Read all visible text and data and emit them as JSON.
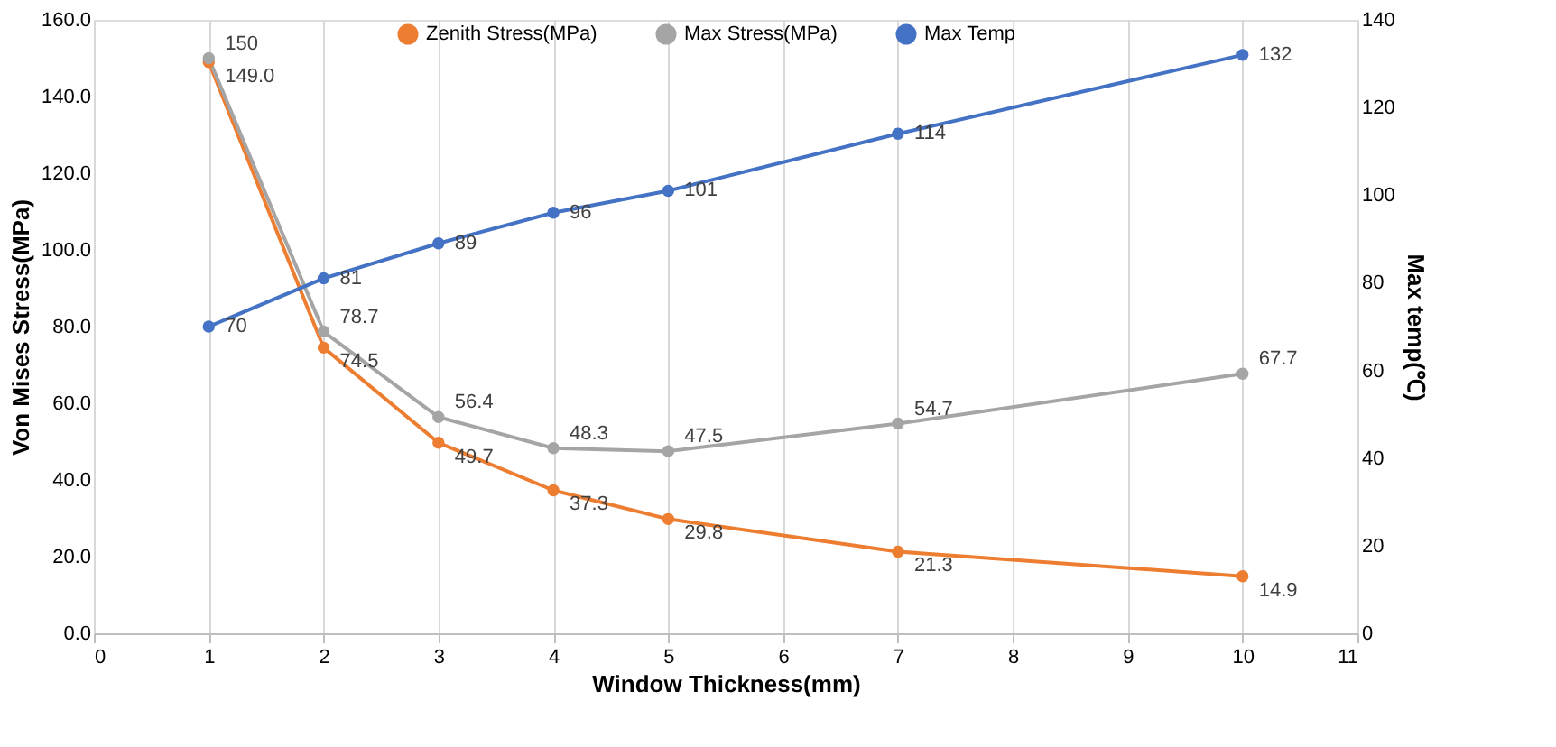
{
  "chart_data": {
    "type": "line",
    "xlabel": "Window Thickness(mm)",
    "ylabel": "Von Mises Stress(MPa)",
    "y2label": "Max temp(℃)",
    "x": [
      1,
      2,
      3,
      4,
      5,
      7,
      10
    ],
    "series": [
      {
        "name": "Zenith Stress(MPa)",
        "color": "#ed7d31",
        "values": [
          149.0,
          74.5,
          49.7,
          37.3,
          29.8,
          21.3,
          14.9
        ],
        "value_labels": [
          "149.0",
          "74.5",
          "49.7",
          "37.3",
          "29.8",
          "21.3",
          "14.9"
        ]
      },
      {
        "name": "Max Stress(MPa)",
        "color": "#a5a5a5",
        "values": [
          150,
          78.7,
          56.4,
          48.3,
          47.5,
          54.7,
          67.7
        ],
        "value_labels": [
          "150",
          "78.7",
          "56.4",
          "48.3",
          "47.5",
          "54.7",
          "67.7"
        ]
      },
      {
        "name": "Max Temp",
        "color": "#4472c4",
        "axis": "y2",
        "values": [
          70,
          81,
          89,
          96,
          101,
          114,
          132
        ],
        "value_labels": [
          "70",
          "81",
          "89",
          "96",
          "101",
          "114",
          "132"
        ]
      }
    ],
    "xlim": [
      0,
      11
    ],
    "xticks": [
      0,
      1,
      2,
      3,
      4,
      5,
      6,
      7,
      8,
      9,
      10,
      11
    ],
    "ylim": [
      0,
      160
    ],
    "yticks": [
      {
        "value": 0,
        "label": "0.0"
      },
      {
        "value": 20,
        "label": "20.0"
      },
      {
        "value": 40,
        "label": "40.0"
      },
      {
        "value": 60,
        "label": "60.0"
      },
      {
        "value": 80,
        "label": "80.0"
      },
      {
        "value": 100,
        "label": "100.0"
      },
      {
        "value": 120,
        "label": "120.0"
      },
      {
        "value": 140,
        "label": "140.0"
      },
      {
        "value": 160,
        "label": "160.0"
      }
    ],
    "y2lim": [
      0,
      140
    ],
    "y2ticks": [
      0,
      20,
      40,
      60,
      80,
      100,
      120,
      140
    ],
    "grid": "x",
    "legend": "top",
    "marker": "circle",
    "line_style": "solid"
  }
}
